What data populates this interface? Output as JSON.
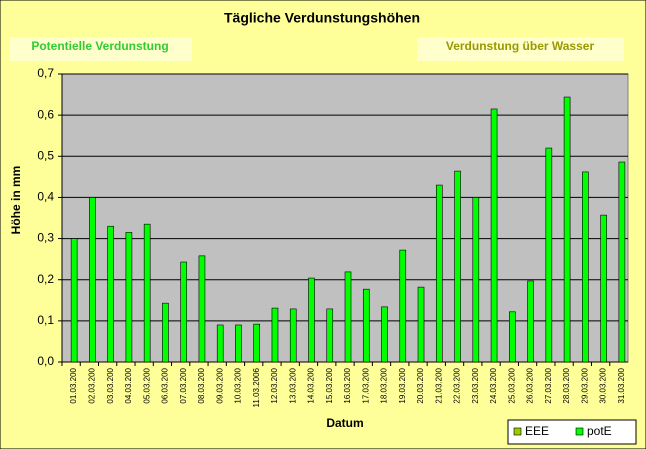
{
  "chart_data": {
    "type": "bar",
    "title": "Tägliche Verdunstungshöhen",
    "annotations": [
      "Potentielle Verdunstung",
      "Verdunstung über Wasser"
    ],
    "x_label": "Datum",
    "y_label": "Höhe in mm",
    "categories": [
      "01.03.200",
      "02.03.200",
      "03.03.200",
      "04.03.200",
      "05.03.200",
      "06.03.200",
      "07.03.200",
      "08.03.200",
      "09.03.200",
      "10.03.200",
      "11.03.2006",
      "12.03.200",
      "13.03.200",
      "14.03.200",
      "15.03.200",
      "16.03.200",
      "17.03.200",
      "18.03.200",
      "19.03.200",
      "20.03.200",
      "21.03.200",
      "22.03.200",
      "23.03.200",
      "24.03.200",
      "25.03.200",
      "26.03.200",
      "27.03.200",
      "28.03.200",
      "29.03.200",
      "30.03.200",
      "31.03.200"
    ],
    "series": [
      {
        "name": "EEE",
        "color": "#99cc00",
        "values": [
          null,
          null,
          null,
          null,
          null,
          null,
          null,
          null,
          null,
          null,
          null,
          null,
          null,
          null,
          null,
          null,
          null,
          null,
          null,
          null,
          null,
          null,
          null,
          null,
          null,
          null,
          null,
          null,
          null,
          null,
          null
        ]
      },
      {
        "name": "potE",
        "color": "#00ff00",
        "values": [
          0.3,
          0.4,
          0.33,
          0.315,
          0.335,
          0.143,
          0.243,
          0.258,
          0.09,
          0.09,
          0.092,
          0.131,
          0.129,
          0.204,
          0.129,
          0.219,
          0.177,
          0.134,
          0.272,
          0.182,
          0.43,
          0.464,
          0.4,
          0.615,
          0.122,
          0.197,
          0.52,
          0.644,
          0.462,
          0.357,
          0.486
        ]
      }
    ],
    "ylim": [
      0,
      0.7
    ],
    "yticks": [
      {
        "value": 0,
        "label": "0,0"
      },
      {
        "value": 0.1,
        "label": "0,1"
      },
      {
        "value": 0.2,
        "label": "0,2"
      },
      {
        "value": 0.3,
        "label": "0,3"
      },
      {
        "value": 0.4,
        "label": "0,4"
      },
      {
        "value": 0.5,
        "label": "0,5"
      },
      {
        "value": 0.6,
        "label": "0,6"
      },
      {
        "value": 0.7,
        "label": "0,7"
      }
    ],
    "grid": true,
    "legend": "bottom-right"
  }
}
